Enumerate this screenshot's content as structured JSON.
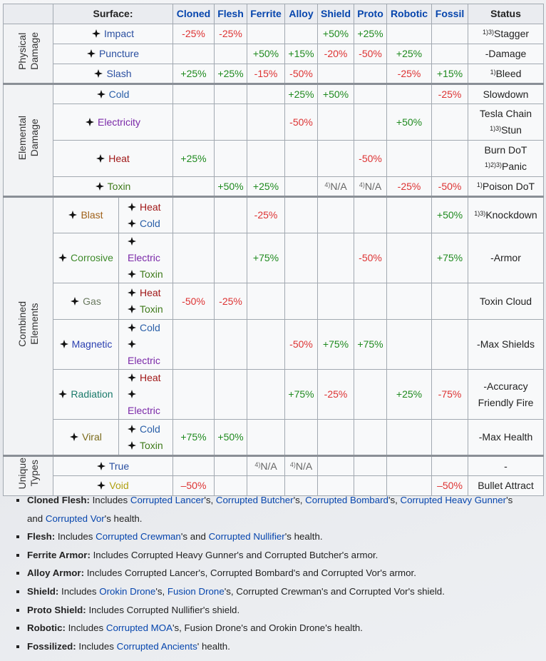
{
  "header": [
    "Surface:",
    "Cloned",
    "Flesh",
    "Ferrite",
    "Alloy",
    "Shield",
    "Proto",
    "Robotic",
    "Fossil",
    "Status"
  ],
  "groups": [
    {
      "label": [
        "Physical",
        "Damage"
      ],
      "rows": [
        {
          "name": "Impact",
          "color": "#2a4fa0",
          "cells": [
            "-25%",
            "-25%",
            null,
            null,
            "+50%",
            "+25%",
            null,
            null
          ],
          "status": [
            {
              "sup": "1)3)",
              "text": "Stagger"
            }
          ]
        },
        {
          "name": "Puncture",
          "color": "#2a4fa0",
          "cells": [
            null,
            null,
            "+50%",
            "+15%",
            "-20%",
            "-50%",
            "+25%",
            null
          ],
          "status": [
            {
              "text": "-Damage"
            }
          ]
        },
        {
          "name": "Slash",
          "color": "#2a4fa0",
          "cells": [
            "+25%",
            "+25%",
            "-15%",
            "-50%",
            null,
            null,
            "-25%",
            "+15%"
          ],
          "status": [
            {
              "sup": "1)",
              "text": "Bleed"
            }
          ]
        }
      ]
    },
    {
      "label": [
        "Elemental",
        "Damage"
      ],
      "rows": [
        {
          "name": "Cold",
          "color": "#2a5fa8",
          "cells": [
            null,
            null,
            null,
            "+25%",
            "+50%",
            null,
            null,
            "-25%"
          ],
          "status": [
            {
              "text": "Slowdown"
            }
          ]
        },
        {
          "name": "Electricity",
          "color": "#7a28a8",
          "cells": [
            null,
            null,
            null,
            "-50%",
            null,
            null,
            "+50%",
            null
          ],
          "status": [
            {
              "text": "Tesla Chain"
            },
            {
              "sup": "1)3)",
              "text": "Stun"
            }
          ]
        },
        {
          "name": "Heat",
          "color": "#a01818",
          "cells": [
            "+25%",
            null,
            null,
            null,
            null,
            "-50%",
            null,
            null
          ],
          "status": [
            {
              "text": "Burn DoT"
            },
            {
              "sup": "1)2)3)",
              "text": "Panic"
            }
          ]
        },
        {
          "name": "Toxin",
          "color": "#3e7a1a",
          "cells": [
            null,
            "+50%",
            "+25%",
            null,
            {
              "sup": "4)",
              "text": "N/A"
            },
            {
              "sup": "4)",
              "text": "N/A"
            },
            "-25%",
            "-50%"
          ],
          "status": [
            {
              "sup": "1)",
              "text": "Poison DoT"
            }
          ]
        }
      ]
    },
    {
      "label": [
        "Combined",
        "Elements"
      ],
      "rows": [
        {
          "name": "Blast",
          "color": "#a0621a",
          "components": [
            {
              "name": "Heat",
              "color": "#a01818"
            },
            {
              "name": "Cold",
              "color": "#2a5fa8"
            }
          ],
          "cells": [
            null,
            null,
            "-25%",
            null,
            null,
            null,
            null,
            "+50%"
          ],
          "status": [
            {
              "sup": "1)3)",
              "text": "Knockdown"
            }
          ]
        },
        {
          "name": "Corrosive",
          "color": "#3e8a2a",
          "components": [
            {
              "name": "Electric",
              "color": "#7a28a8"
            },
            {
              "name": "Toxin",
              "color": "#3e7a1a"
            }
          ],
          "cells": [
            null,
            null,
            "+75%",
            null,
            null,
            "-50%",
            null,
            "+75%"
          ],
          "status": [
            {
              "text": "-Armor"
            }
          ]
        },
        {
          "name": "Gas",
          "color": "#6a7a60",
          "components": [
            {
              "name": "Heat",
              "color": "#a01818"
            },
            {
              "name": "Toxin",
              "color": "#3e7a1a"
            }
          ],
          "cells": [
            "-50%",
            "-25%",
            null,
            null,
            null,
            null,
            null,
            null
          ],
          "status": [
            {
              "text": "Toxin Cloud"
            }
          ]
        },
        {
          "name": "Magnetic",
          "color": "#2a3fb0",
          "components": [
            {
              "name": "Cold",
              "color": "#2a5fa8"
            },
            {
              "name": "Electric",
              "color": "#7a28a8"
            }
          ],
          "cells": [
            null,
            null,
            null,
            "-50%",
            "+75%",
            "+75%",
            null,
            null
          ],
          "status": [
            {
              "text": "-Max Shields"
            }
          ]
        },
        {
          "name": "Radiation",
          "color": "#1a7a6a",
          "components": [
            {
              "name": "Heat",
              "color": "#a01818"
            },
            {
              "name": "Electric",
              "color": "#7a28a8"
            }
          ],
          "cells": [
            null,
            null,
            null,
            "+75%",
            "-25%",
            null,
            "+25%",
            "-75%"
          ],
          "status": [
            {
              "text": "-Accuracy"
            },
            {
              "text": "Friendly Fire"
            }
          ]
        },
        {
          "name": "Viral",
          "color": "#7a6a1a",
          "components": [
            {
              "name": "Cold",
              "color": "#2a5fa8"
            },
            {
              "name": "Toxin",
              "color": "#3e7a1a"
            }
          ],
          "cells": [
            "+75%",
            "+50%",
            null,
            null,
            null,
            null,
            null,
            null
          ],
          "status": [
            {
              "text": "-Max Health"
            }
          ]
        }
      ]
    },
    {
      "label": [
        "Unique",
        "Types"
      ],
      "rows": [
        {
          "name": "True",
          "color": "#2a4fa0",
          "cells": [
            null,
            null,
            {
              "sup": "4)",
              "text": "N/A"
            },
            {
              "sup": "4)",
              "text": "N/A"
            },
            null,
            null,
            null,
            null
          ],
          "status": [
            {
              "text": "-"
            }
          ]
        },
        {
          "name": "Void",
          "color": "#b0a010",
          "cells": [
            "–50%",
            null,
            null,
            null,
            null,
            null,
            null,
            "–50%"
          ],
          "status": [
            {
              "text": "Bullet Attract"
            }
          ]
        }
      ]
    }
  ],
  "notes": [
    {
      "label": "Cloned Flesh:",
      "parts": [
        " Includes ",
        {
          "link": "Corrupted Lancer"
        },
        "'s, ",
        {
          "link": "Corrupted Butcher"
        },
        "'s, ",
        {
          "link": "Corrupted Bombard"
        },
        "'s, ",
        {
          "link": "Corrupted Heavy Gunner"
        },
        "'s and ",
        {
          "link": "Corrupted Vor"
        },
        "'s health."
      ]
    },
    {
      "label": "Flesh:",
      "parts": [
        " Includes ",
        {
          "link": "Corrupted Crewman"
        },
        "'s and ",
        {
          "link": "Corrupted Nullifier"
        },
        "'s health."
      ]
    },
    {
      "label": "Ferrite Armor:",
      "parts": [
        " Includes Corrupted Heavy Gunner's and Corrupted Butcher's armor."
      ]
    },
    {
      "label": "Alloy Armor:",
      "parts": [
        " Includes Corrupted Lancer's, Corrupted Bombard's and Corrupted Vor's armor."
      ]
    },
    {
      "label": "Shield:",
      "parts": [
        " Includes ",
        {
          "link": "Orokin Drone"
        },
        "'s, ",
        {
          "link": "Fusion Drone"
        },
        "'s, Corrupted Crewman's and Corrupted Vor's shield."
      ]
    },
    {
      "label": "Proto Shield:",
      "parts": [
        " Includes Corrupted Nullifier's shield."
      ]
    },
    {
      "label": "Robotic:",
      "parts": [
        " Includes ",
        {
          "link": "Corrupted MOA"
        },
        "'s, Fusion Drone's and Orokin Drone's health."
      ]
    },
    {
      "label": "Fossilized:",
      "parts": [
        " Includes ",
        {
          "link": "Corrupted Ancients"
        },
        "' health."
      ]
    }
  ]
}
